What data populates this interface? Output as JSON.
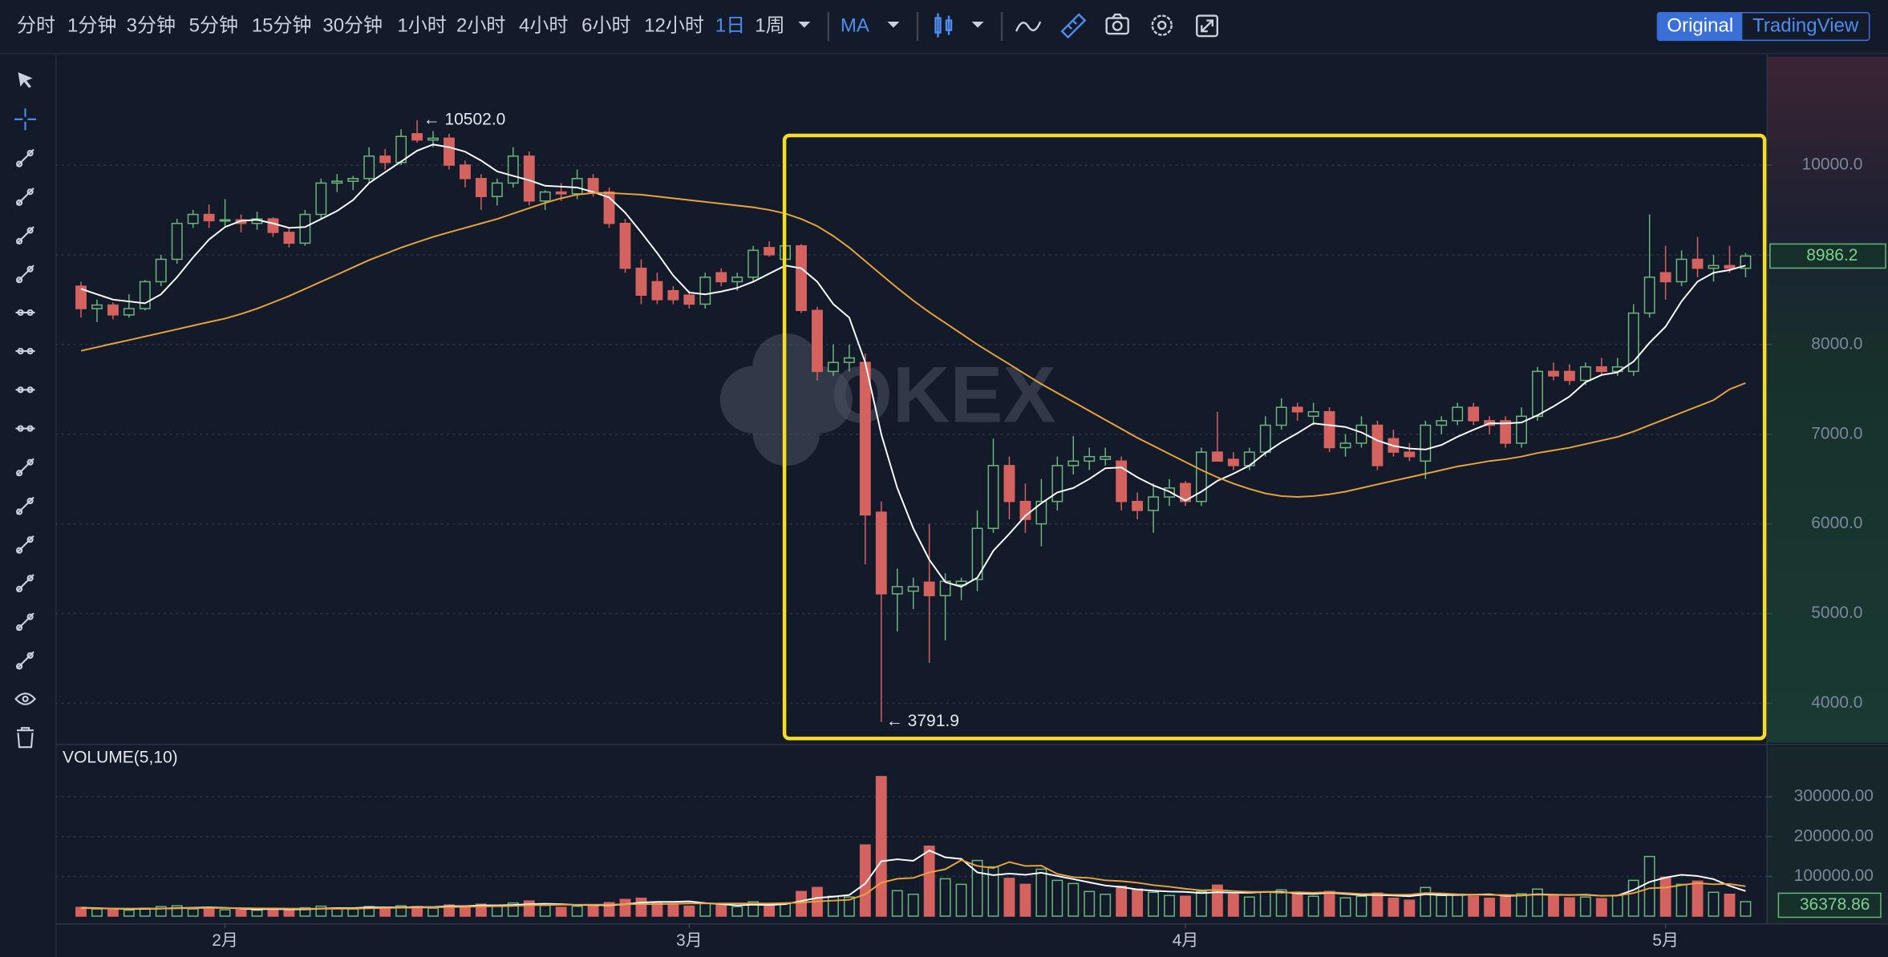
{
  "toolbar": {
    "intervals": [
      "分时",
      "1分钟",
      "3分钟",
      "5分钟",
      "15分钟",
      "30分钟",
      "1小时",
      "2小时",
      "4小时",
      "6小时",
      "12小时",
      "1日",
      "1周"
    ],
    "active_interval": 11,
    "indicator": "MA",
    "views": [
      "Original",
      "TradingView"
    ],
    "active_view": 0
  },
  "chart_data": {
    "type": "candlestick",
    "watermark": "OKEX",
    "grid": true,
    "up_color": "#6cb57a",
    "down_color": "#d4625e",
    "xlim": [
      -1.6,
      105.3
    ],
    "xticks": [
      {
        "value": 9,
        "label": "2月"
      },
      {
        "value": 38,
        "label": "3月"
      },
      {
        "value": 69,
        "label": "4月"
      },
      {
        "value": 99,
        "label": "5月"
      }
    ],
    "ylim": [
      3560,
      11210
    ],
    "yticks": [
      {
        "value": 4000,
        "label": "4000.0"
      },
      {
        "value": 5000,
        "label": "5000.0"
      },
      {
        "value": 6000,
        "label": "6000.0"
      },
      {
        "value": 7000,
        "label": "7000.0"
      },
      {
        "value": 8000,
        "label": "8000.0"
      },
      {
        "value": 9000,
        "label": "9000.0"
      },
      {
        "value": 10000,
        "label": "10000.0"
      }
    ],
    "annotations": [
      "← 10502.0",
      "← 3791.9"
    ],
    "open": [
      8650,
      8400,
      8440,
      8330,
      8400,
      8700,
      8950,
      9350,
      9450,
      9380,
      9390,
      9350,
      9400,
      9250,
      9130,
      9450,
      9800,
      9820,
      9850,
      10100,
      10030,
      10350,
      10280,
      10300,
      10000,
      9850,
      9650,
      9800,
      10100,
      9600,
      9700,
      9680,
      9850,
      9700,
      9350,
      8850,
      8700,
      8600,
      8550,
      8450,
      8800,
      8700,
      8750,
      9080,
      8950,
      9100,
      8380,
      7700,
      7800,
      7800,
      6130,
      5220,
      5250,
      5350,
      5200,
      5320,
      5380,
      5950,
      6650,
      6250,
      6000,
      6250,
      6650,
      6700,
      6720,
      6700,
      6250,
      6150,
      6300,
      6450,
      6250,
      6800,
      6720,
      6650,
      6800,
      7100,
      7300,
      7200,
      7250,
      6850,
      6900,
      7100,
      6950,
      6800,
      6700,
      7100,
      7150,
      7300,
      7150,
      7150,
      6900,
      7200,
      7700,
      7700,
      7600,
      7750,
      7700,
      7700,
      8350,
      8800,
      8700,
      8950,
      8850,
      8880,
      8850
    ],
    "high": [
      8700,
      8500,
      8470,
      8560,
      8720,
      9000,
      9400,
      9500,
      9560,
      9620,
      9450,
      9480,
      9420,
      9300,
      9500,
      9850,
      9900,
      9880,
      10200,
      10180,
      10400,
      10502,
      10380,
      10350,
      10050,
      9900,
      9850,
      10200,
      10150,
      9720,
      9800,
      9950,
      9900,
      9750,
      9400,
      8950,
      8800,
      8650,
      8600,
      8800,
      8850,
      8800,
      9100,
      9150,
      9150,
      9120,
      8420,
      8000,
      8000,
      7900,
      6250,
      5500,
      5400,
      6000,
      5450,
      5400,
      6150,
      6950,
      6750,
      6450,
      6500,
      6750,
      6980,
      6850,
      6850,
      6750,
      6350,
      6450,
      6500,
      6480,
      6850,
      7250,
      6800,
      6850,
      7200,
      7400,
      7350,
      7350,
      7300,
      7000,
      7200,
      7150,
      7050,
      6900,
      7150,
      7200,
      7350,
      7350,
      7200,
      7200,
      7300,
      7750,
      7800,
      7780,
      7800,
      7850,
      7850,
      8450,
      9450,
      9100,
      9050,
      9200,
      9000,
      9100,
      9020
    ],
    "low": [
      8300,
      8250,
      8280,
      8300,
      8380,
      8650,
      8900,
      9300,
      9300,
      9320,
      9250,
      9280,
      9200,
      9080,
      9100,
      9400,
      9700,
      9720,
      9800,
      9950,
      10000,
      10250,
      10200,
      9950,
      9750,
      9500,
      9550,
      9750,
      9550,
      9500,
      9600,
      9620,
      9650,
      9300,
      8800,
      8450,
      8450,
      8450,
      8400,
      8400,
      8650,
      8600,
      8700,
      8980,
      8900,
      8350,
      7600,
      7650,
      7700,
      5550,
      3791.9,
      4800,
      5050,
      4450,
      4700,
      5150,
      5250,
      5900,
      6050,
      5900,
      5750,
      6150,
      6550,
      6600,
      6650,
      6150,
      6050,
      5900,
      6200,
      6200,
      6200,
      6700,
      6600,
      6600,
      6750,
      7050,
      7150,
      7100,
      6800,
      6750,
      6850,
      6600,
      6750,
      6700,
      6500,
      7000,
      7100,
      7100,
      7000,
      6850,
      6850,
      7150,
      7600,
      7550,
      7550,
      7650,
      7650,
      7650,
      8300,
      8500,
      8650,
      8750,
      8700,
      8800,
      8750
    ],
    "close": [
      8400,
      8440,
      8330,
      8400,
      8700,
      8950,
      9350,
      9450,
      9380,
      9390,
      9350,
      9400,
      9250,
      9130,
      9450,
      9800,
      9820,
      9850,
      10100,
      10030,
      10320,
      10280,
      10300,
      10000,
      9850,
      9650,
      9800,
      10100,
      9600,
      9700,
      9680,
      9850,
      9700,
      9350,
      8850,
      8550,
      8500,
      8500,
      8450,
      8750,
      8700,
      8750,
      9050,
      9000,
      9100,
      8380,
      7700,
      7800,
      7850,
      6100,
      5220,
      5300,
      5300,
      5200,
      5360,
      5360,
      5950,
      6650,
      6250,
      6050,
      6250,
      6650,
      6700,
      6750,
      6750,
      6250,
      6150,
      6300,
      6400,
      6250,
      6800,
      6700,
      6650,
      6800,
      7100,
      7300,
      7250,
      7250,
      6850,
      6900,
      7100,
      6650,
      6800,
      6750,
      7100,
      7150,
      7300,
      7150,
      7100,
      6900,
      7200,
      7700,
      7650,
      7600,
      7750,
      7700,
      7750,
      8350,
      8750,
      8700,
      8950,
      8850,
      8880,
      8850,
      8986.2
    ],
    "ma_lines": [
      {
        "color": "#ffffff",
        "values": [
          8620,
          8560,
          8500,
          8480,
          8460,
          8560,
          8750,
          8970,
          9170,
          9310,
          9380,
          9390,
          9350,
          9300,
          9310,
          9400,
          9490,
          9610,
          9800,
          9920,
          10040,
          10160,
          10230,
          10200,
          10150,
          10050,
          9930,
          9880,
          9830,
          9770,
          9760,
          9750,
          9700,
          9640,
          9470,
          9250,
          9020,
          8770,
          8580,
          8560,
          8590,
          8630,
          8700,
          8790,
          8880,
          8850,
          8700,
          8450,
          8300,
          7800,
          7000,
          6400,
          5950,
          5600,
          5350,
          5300,
          5400,
          5700,
          5890,
          6090,
          6230,
          6350,
          6400,
          6500,
          6620,
          6630,
          6520,
          6430,
          6360,
          6260,
          6360,
          6480,
          6560,
          6650,
          6790,
          6910,
          7010,
          7120,
          7100,
          7080,
          7020,
          6930,
          6870,
          6840,
          6830,
          6880,
          6970,
          7050,
          7120,
          7120,
          7130,
          7210,
          7310,
          7420,
          7580,
          7660,
          7690,
          7810,
          8020,
          8200,
          8480,
          8700,
          8800,
          8830,
          8880
        ]
      },
      {
        "color": "#e8a33d",
        "values": [
          7930,
          7970,
          8010,
          8050,
          8090,
          8130,
          8170,
          8210,
          8250,
          8290,
          8340,
          8400,
          8470,
          8540,
          8620,
          8700,
          8780,
          8860,
          8940,
          9010,
          9080,
          9140,
          9200,
          9250,
          9300,
          9350,
          9400,
          9460,
          9520,
          9580,
          9630,
          9670,
          9690,
          9690,
          9680,
          9670,
          9650,
          9630,
          9610,
          9590,
          9570,
          9550,
          9530,
          9500,
          9460,
          9400,
          9320,
          9210,
          9080,
          8930,
          8780,
          8630,
          8490,
          8360,
          8240,
          8120,
          8000,
          7890,
          7780,
          7670,
          7560,
          7460,
          7360,
          7260,
          7160,
          7060,
          6960,
          6870,
          6780,
          6690,
          6600,
          6520,
          6450,
          6390,
          6340,
          6310,
          6300,
          6310,
          6330,
          6360,
          6400,
          6440,
          6480,
          6520,
          6560,
          6600,
          6640,
          6670,
          6700,
          6720,
          6750,
          6790,
          6820,
          6850,
          6890,
          6930,
          6970,
          7030,
          7100,
          7170,
          7240,
          7310,
          7380,
          7500,
          7570
        ]
      }
    ],
    "volume": {
      "title": "VOLUME(5,10)",
      "ylim": [
        -18000,
        427000
      ],
      "yticks": [
        {
          "value": 100000,
          "label": "100000.00"
        },
        {
          "value": 200000,
          "label": "200000.00"
        },
        {
          "value": 300000,
          "label": "300000.00"
        }
      ],
      "values": [
        22000,
        18000,
        16000,
        15000,
        20000,
        24000,
        26000,
        18000,
        20000,
        16000,
        15000,
        15000,
        19000,
        17000,
        21000,
        25000,
        20000,
        18000,
        24000,
        22000,
        26000,
        24000,
        20000,
        28000,
        25000,
        30000,
        26000,
        33000,
        38000,
        27000,
        22000,
        25000,
        26000,
        34000,
        42000,
        45000,
        33000,
        28000,
        25000,
        32000,
        27000,
        24000,
        36000,
        30000,
        32000,
        62000,
        72000,
        50000,
        48000,
        179000,
        351000,
        64000,
        55000,
        176000,
        94000,
        80000,
        140000,
        124000,
        95000,
        80000,
        118000,
        90000,
        82000,
        62000,
        55000,
        75000,
        68000,
        60000,
        52000,
        50000,
        62000,
        78000,
        55000,
        48000,
        60000,
        66000,
        55000,
        50000,
        62000,
        46000,
        50000,
        58000,
        45000,
        40000,
        72000,
        52000,
        55000,
        50000,
        45000,
        52000,
        56000,
        68000,
        50000,
        46000,
        48000,
        44000,
        52000,
        90000,
        150000,
        98000,
        80000,
        88000,
        60000,
        55000,
        36378.86
      ],
      "ma_lines": [
        {
          "color": "#ffffff",
          "values": [
            21000,
            20000,
            19000,
            18000,
            18000,
            19000,
            20000,
            21000,
            22000,
            21000,
            19000,
            17000,
            18000,
            17000,
            17000,
            19000,
            20000,
            20000,
            22000,
            22000,
            22000,
            23000,
            23000,
            25000,
            25000,
            27000,
            27000,
            28000,
            30000,
            31000,
            30000,
            28000,
            28000,
            27000,
            30000,
            34000,
            36000,
            36000,
            37000,
            33000,
            30000,
            27000,
            29000,
            28000,
            30000,
            38000,
            46000,
            49000,
            53000,
            82000,
            138000,
            143000,
            139000,
            165000,
            148000,
            144000,
            110000,
            103000,
            107000,
            104000,
            109000,
            101000,
            93000,
            85000,
            77000,
            73000,
            67000,
            64000,
            62000,
            61000,
            58000,
            60000,
            59000,
            59000,
            61000,
            61000,
            57000,
            56000,
            59000,
            56000,
            53000,
            53000,
            52000,
            50000,
            55000,
            53000,
            53000,
            54000,
            55000,
            51000,
            52000,
            55000,
            54000,
            53000,
            54000,
            51000,
            52000,
            66000,
            86000,
            97000,
            104000,
            101000,
            93000,
            76000,
            63000
          ]
        },
        {
          "color": "#e8a33d",
          "values": [
            20000,
            19500,
            19000,
            19000,
            19000,
            19000,
            19500,
            20000,
            20500,
            20500,
            20000,
            19500,
            19500,
            19000,
            18500,
            18500,
            18500,
            19000,
            19500,
            20500,
            21000,
            21500,
            22000,
            23000,
            23500,
            24500,
            25000,
            25500,
            27500,
            28000,
            28500,
            28500,
            29000,
            29000,
            30000,
            30000,
            30000,
            31000,
            32000,
            32000,
            32000,
            32000,
            32000,
            32000,
            33000,
            34000,
            37000,
            39000,
            41000,
            55000,
            84000,
            94000,
            96000,
            110000,
            118000,
            141000,
            126000,
            121000,
            136000,
            126000,
            127000,
            106000,
            98000,
            96000,
            90000,
            88000,
            84000,
            78000,
            74000,
            69000,
            65000,
            66000,
            63000,
            61000,
            61000,
            59000,
            60000,
            59000,
            60000,
            58000,
            56000,
            56000,
            54000,
            54000,
            58000,
            57000,
            55000,
            54000,
            53000,
            53000,
            52000,
            54000,
            53000,
            53000,
            53000,
            51000,
            52000,
            58000,
            70000,
            72000,
            78000,
            83000,
            80000,
            81000,
            75000
          ]
        }
      ]
    }
  }
}
